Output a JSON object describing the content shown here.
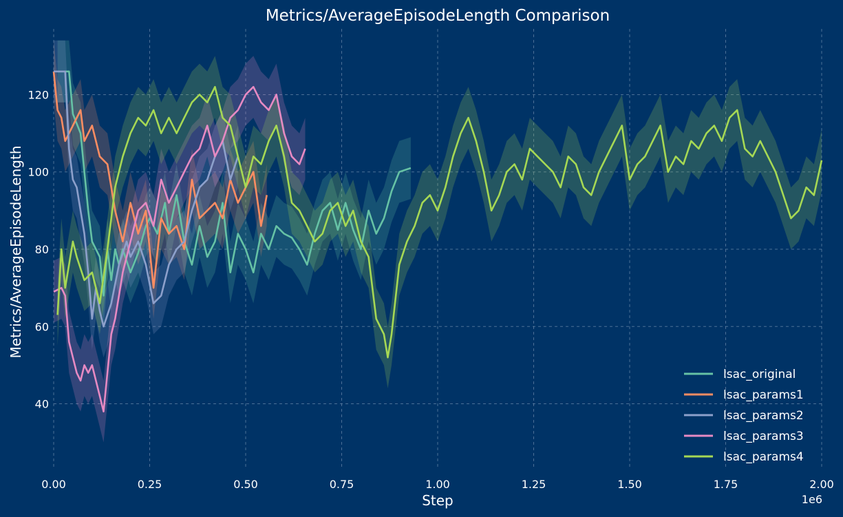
{
  "chart_data": {
    "type": "line",
    "title": "Metrics/AverageEpisodeLength Comparison",
    "xlabel": "Step",
    "ylabel": "Metrics/AverageEpisodeLength",
    "x_exponent_label": "1e6",
    "xlim": [
      0,
      2.0
    ],
    "ylim": [
      23,
      137
    ],
    "x_ticks": [
      "0.00",
      "0.25",
      "0.50",
      "0.75",
      "1.00",
      "1.25",
      "1.50",
      "1.75",
      "2.00"
    ],
    "y_ticks": [
      "40",
      "60",
      "80",
      "100",
      "120"
    ],
    "grid": true,
    "legend_position": "lower-right",
    "band_half_width": 8,
    "series": [
      {
        "name": "lsac_original",
        "color": "#66c2a5",
        "x": [
          0.01,
          0.02,
          0.04,
          0.05,
          0.07,
          0.08,
          0.09,
          0.1,
          0.12,
          0.13,
          0.14,
          0.15,
          0.16,
          0.17,
          0.18,
          0.2,
          0.22,
          0.24,
          0.25,
          0.27,
          0.29,
          0.3,
          0.32,
          0.34,
          0.36,
          0.38,
          0.4,
          0.42,
          0.44,
          0.46,
          0.48,
          0.5,
          0.52,
          0.54,
          0.56,
          0.58,
          0.6,
          0.62,
          0.64,
          0.66,
          0.68,
          0.7,
          0.72,
          0.74,
          0.76,
          0.78,
          0.8,
          0.82,
          0.84,
          0.86,
          0.88,
          0.9,
          0.93
        ],
        "values": [
          126,
          126,
          126,
          115,
          110,
          100,
          90,
          82,
          78,
          68,
          80,
          72,
          80,
          76,
          80,
          74,
          79,
          86,
          88,
          84,
          92,
          84,
          94,
          82,
          76,
          86,
          78,
          82,
          92,
          74,
          84,
          80,
          74,
          84,
          80,
          86,
          84,
          83,
          80,
          76,
          84,
          90,
          92,
          85,
          92,
          85,
          80,
          90,
          84,
          88,
          95,
          100,
          101
        ]
      },
      {
        "name": "lsac_params1",
        "color": "#fc8d62",
        "x": [
          0.0,
          0.01,
          0.02,
          0.03,
          0.05,
          0.07,
          0.08,
          0.1,
          0.12,
          0.14,
          0.15,
          0.16,
          0.18,
          0.2,
          0.22,
          0.24,
          0.26,
          0.28,
          0.3,
          0.32,
          0.34,
          0.36,
          0.38,
          0.4,
          0.42,
          0.44,
          0.46,
          0.48,
          0.5,
          0.52,
          0.54,
          0.555
        ],
        "values": [
          126,
          116,
          114,
          108,
          112,
          116,
          108,
          112,
          104,
          102,
          96,
          90,
          82,
          92,
          84,
          90,
          70,
          88,
          84,
          86,
          80,
          98,
          88,
          90,
          92,
          88,
          98,
          92,
          96,
          100,
          86,
          94
        ]
      },
      {
        "name": "lsac_params2",
        "color": "#8da0cb",
        "x": [
          0.0,
          0.01,
          0.03,
          0.04,
          0.05,
          0.06,
          0.08,
          0.09,
          0.1,
          0.11,
          0.12,
          0.13,
          0.15,
          0.17,
          0.19,
          0.2,
          0.22,
          0.24,
          0.26,
          0.28,
          0.3,
          0.32,
          0.34,
          0.36,
          0.38,
          0.4,
          0.42,
          0.44,
          0.46,
          0.48
        ],
        "values": [
          126,
          126,
          126,
          106,
          98,
          96,
          84,
          74,
          62,
          70,
          64,
          60,
          66,
          76,
          82,
          78,
          82,
          76,
          66,
          68,
          76,
          80,
          82,
          90,
          96,
          98,
          104,
          108,
          98,
          104
        ]
      },
      {
        "name": "lsac_params3",
        "color": "#e78ac3",
        "x": [
          0.0,
          0.02,
          0.03,
          0.04,
          0.05,
          0.06,
          0.07,
          0.08,
          0.09,
          0.1,
          0.11,
          0.12,
          0.13,
          0.14,
          0.15,
          0.16,
          0.17,
          0.18,
          0.2,
          0.22,
          0.24,
          0.26,
          0.28,
          0.3,
          0.32,
          0.34,
          0.36,
          0.38,
          0.4,
          0.42,
          0.44,
          0.46,
          0.48,
          0.5,
          0.52,
          0.54,
          0.56,
          0.58,
          0.6,
          0.62,
          0.64,
          0.655
        ],
        "values": [
          69,
          70,
          68,
          56,
          52,
          48,
          46,
          50,
          48,
          50,
          46,
          42,
          38,
          48,
          58,
          62,
          68,
          74,
          82,
          90,
          92,
          86,
          98,
          92,
          96,
          100,
          104,
          106,
          112,
          104,
          108,
          114,
          116,
          120,
          122,
          118,
          116,
          120,
          110,
          104,
          102,
          106
        ]
      },
      {
        "name": "lsac_params4",
        "color": "#a6d854",
        "x": [
          0.01,
          0.02,
          0.03,
          0.05,
          0.06,
          0.08,
          0.1,
          0.12,
          0.14,
          0.16,
          0.18,
          0.2,
          0.22,
          0.24,
          0.26,
          0.28,
          0.3,
          0.32,
          0.34,
          0.36,
          0.38,
          0.4,
          0.42,
          0.44,
          0.46,
          0.48,
          0.5,
          0.52,
          0.54,
          0.56,
          0.58,
          0.6,
          0.62,
          0.64,
          0.66,
          0.68,
          0.7,
          0.72,
          0.74,
          0.76,
          0.78,
          0.8,
          0.82,
          0.84,
          0.86,
          0.87,
          0.88,
          0.9,
          0.92,
          0.94,
          0.96,
          0.98,
          1.0,
          1.02,
          1.04,
          1.06,
          1.08,
          1.1,
          1.12,
          1.14,
          1.16,
          1.18,
          1.2,
          1.22,
          1.24,
          1.26,
          1.28,
          1.3,
          1.32,
          1.34,
          1.36,
          1.38,
          1.4,
          1.42,
          1.44,
          1.46,
          1.48,
          1.5,
          1.52,
          1.54,
          1.56,
          1.58,
          1.6,
          1.62,
          1.64,
          1.66,
          1.68,
          1.7,
          1.72,
          1.74,
          1.76,
          1.78,
          1.8,
          1.82,
          1.84,
          1.86,
          1.88,
          1.9,
          1.92,
          1.94,
          1.96,
          1.98,
          2.0
        ],
        "values": [
          63,
          80,
          70,
          82,
          78,
          72,
          74,
          66,
          80,
          96,
          104,
          110,
          114,
          112,
          116,
          110,
          114,
          110,
          114,
          118,
          120,
          118,
          122,
          114,
          112,
          104,
          96,
          104,
          102,
          108,
          112,
          104,
          92,
          90,
          86,
          82,
          84,
          90,
          92,
          86,
          90,
          82,
          78,
          62,
          58,
          52,
          58,
          76,
          82,
          86,
          92,
          94,
          90,
          96,
          104,
          110,
          114,
          108,
          100,
          90,
          94,
          100,
          102,
          98,
          106,
          104,
          102,
          100,
          96,
          104,
          102,
          96,
          94,
          100,
          104,
          108,
          112,
          98,
          102,
          104,
          108,
          112,
          100,
          104,
          102,
          108,
          106,
          110,
          112,
          108,
          114,
          116,
          106,
          104,
          108,
          104,
          100,
          94,
          88,
          90,
          96,
          94,
          103
        ]
      }
    ]
  }
}
